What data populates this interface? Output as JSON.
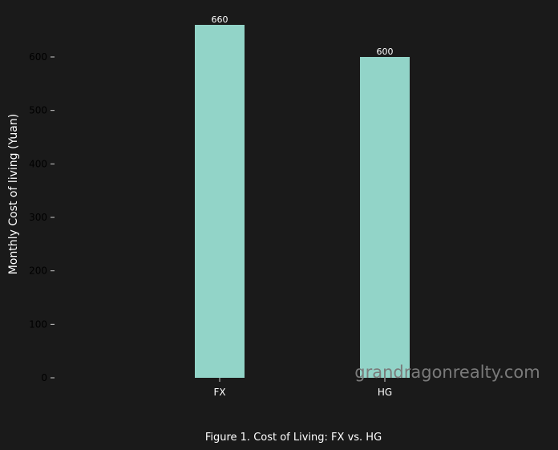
{
  "caption": "Figure 1. Cost of Living: FX vs. HG",
  "watermark": "grandragonrealty.com",
  "colors": {
    "background": "#1a1a1a",
    "bar": "#92d4c8",
    "text": "#ffffff",
    "tick_text": "#000000",
    "tick_mark": "#cccccc",
    "watermark": "#7a7a7a"
  },
  "chart_data": {
    "type": "bar",
    "categories": [
      "FX",
      "HG"
    ],
    "values": [
      660,
      600
    ],
    "data_labels": [
      "660",
      "600"
    ],
    "xlabel": "",
    "ylabel": "Monthly Cost of living (Yuan)",
    "ylim": [
      0,
      660
    ],
    "yticks": [
      0,
      100,
      200,
      300,
      400,
      500,
      600
    ],
    "grid": false,
    "legend": "none"
  }
}
